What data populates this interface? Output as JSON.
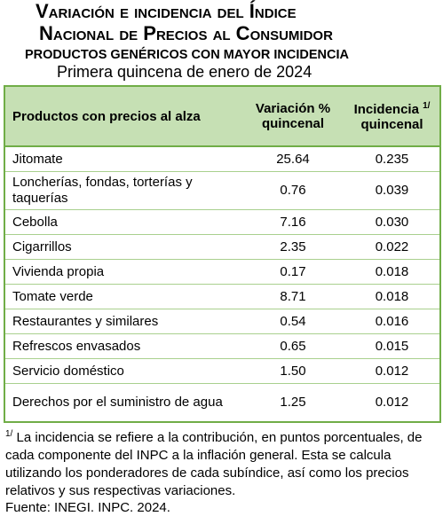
{
  "header": {
    "title_lines": [
      "Variación e incidencia del Índice",
      "Nacional de Precios al Consumidor"
    ],
    "subtitle": "PRODUCTOS GENÉRICOS CON MAYOR INCIDENCIA",
    "period": "Primera quincena de enero de 2024"
  },
  "table": {
    "columns": [
      "Productos con precios al alza",
      "Variación % quincenal",
      {
        "text": "Incidencia",
        "note": "1/",
        "text2": "quincenal"
      }
    ],
    "rows": [
      [
        "Jitomate",
        "25.64",
        "0.235"
      ],
      [
        "Loncherías, fondas, torterías y taquerías",
        "0.76",
        "0.039"
      ],
      [
        "Cebolla",
        "7.16",
        "0.030"
      ],
      [
        "Cigarrillos",
        "2.35",
        "0.022"
      ],
      [
        "Vivienda propia",
        "0.17",
        "0.018"
      ],
      [
        "Tomate verde",
        "8.71",
        "0.018"
      ],
      [
        "Restaurantes y similares",
        "0.54",
        "0.016"
      ],
      [
        "Refrescos envasados",
        "0.65",
        "0.015"
      ],
      [
        "Servicio doméstico",
        "1.50",
        "0.012"
      ],
      [
        "Derechos por el suministro de agua",
        "1.25",
        "0.012"
      ]
    ]
  },
  "footnote": {
    "mark": "1/",
    "text": "La incidencia se refiere a la contribución, en puntos porcentuales, de cada componente del INPC a la inflación general. Esta se calcula utilizando los ponderadores de cada subíndice, así como los precios relativos y sus respectivas variaciones."
  },
  "source": "Fuente: INEGI. INPC. 2024."
}
